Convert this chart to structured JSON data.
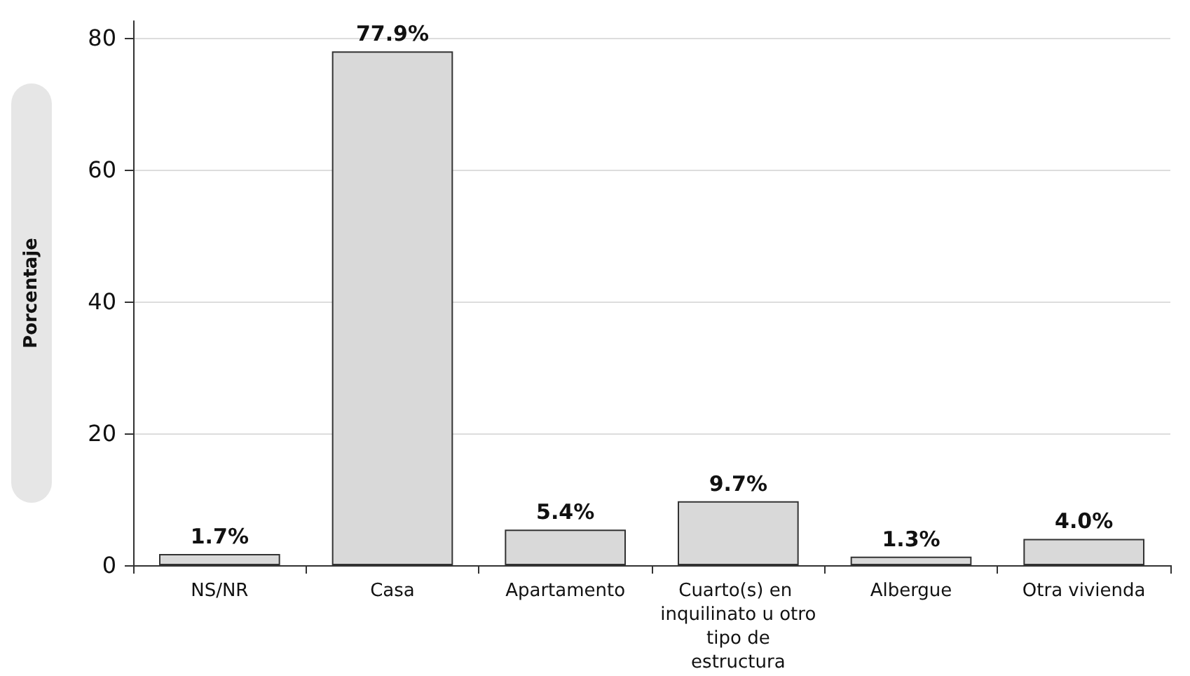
{
  "chart_data": {
    "type": "bar",
    "ylabel": "Porcentaje",
    "categories": [
      "NS/NR",
      "Casa",
      "Apartamento",
      "Cuarto(s) en inquilinato u otro tipo de estructura",
      "Albergue",
      "Otra vivienda"
    ],
    "values": [
      1.7,
      77.9,
      5.4,
      9.7,
      1.3,
      4.0
    ],
    "value_labels": [
      "1.7%",
      "77.9%",
      "5.4%",
      "9.7%",
      "1.3%",
      "4.0%"
    ],
    "color": "#d9d9d9",
    "ylim": [
      0,
      82.5
    ],
    "yticks": [
      0,
      20,
      40,
      60,
      80
    ],
    "grid": "y"
  }
}
